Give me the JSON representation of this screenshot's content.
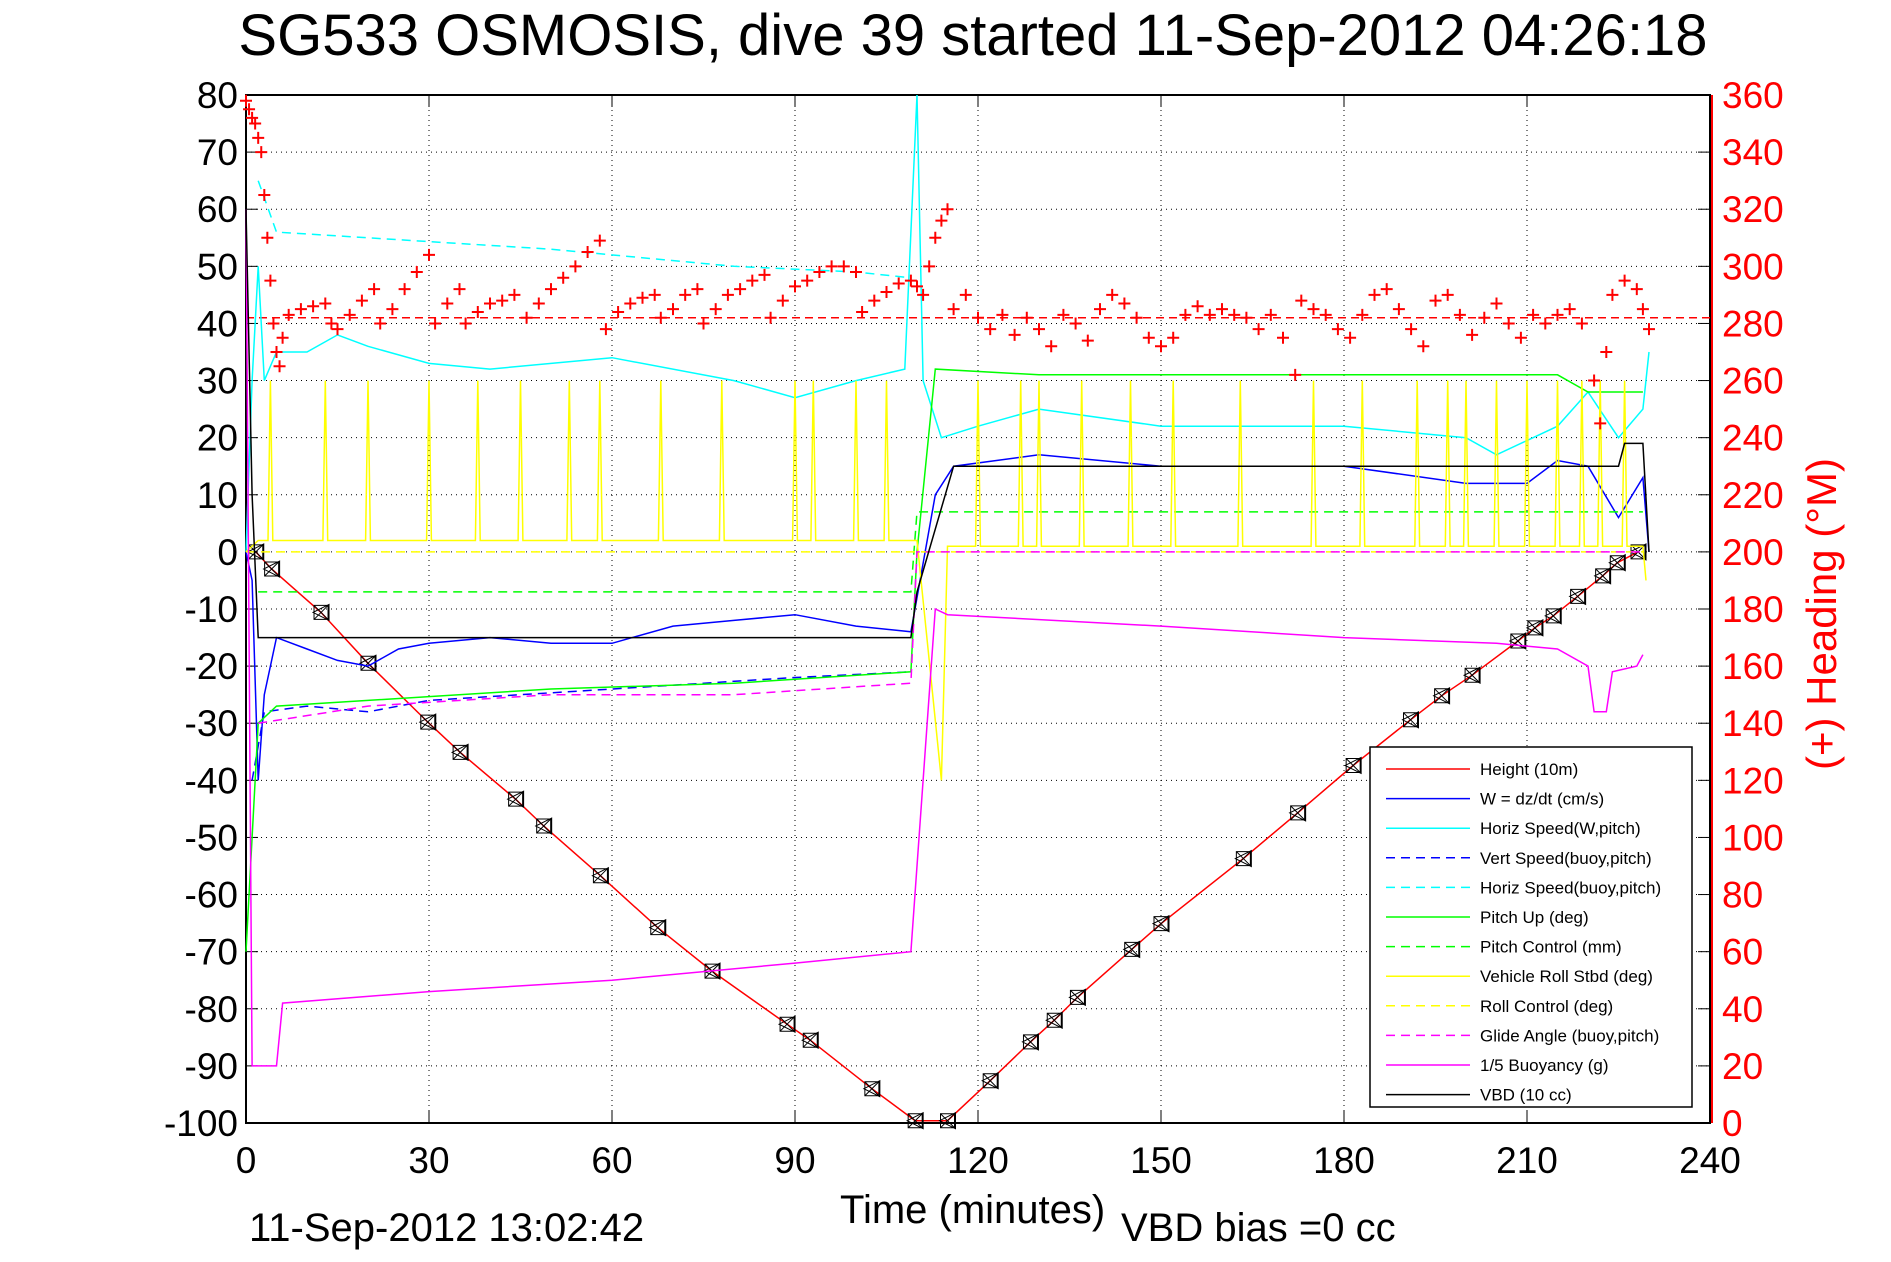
{
  "chart_data": {
    "type": "line",
    "title": "SG533 OSMOSIS, dive 39 started 11-Sep-2012 04:26:18",
    "xlabel": "Time (minutes)",
    "ylabel_right": "(+) Heading (°M)",
    "footer_date": "11-Sep-2012 13:02:42",
    "footer_bias": "VBD bias =0 cc",
    "xlim": [
      0,
      240
    ],
    "ylim": [
      -100,
      80
    ],
    "ylim_right": [
      0,
      360
    ],
    "xticks": [
      0,
      30,
      60,
      90,
      120,
      150,
      180,
      210,
      240
    ],
    "yticks": [
      80,
      70,
      60,
      50,
      40,
      30,
      20,
      10,
      0,
      -10,
      -20,
      -30,
      -40,
      -50,
      -60,
      -70,
      -80,
      -90,
      -100
    ],
    "yticks_right": [
      360,
      340,
      320,
      300,
      280,
      260,
      240,
      220,
      200,
      180,
      160,
      140,
      120,
      100,
      80,
      60,
      40,
      20,
      0
    ],
    "grid": true,
    "legend_position": "bottom-right",
    "colors": {
      "axis": "#000000",
      "right_axis": "#ff0000"
    },
    "series": [
      {
        "name": "Height (10m)",
        "color": "#ff0000",
        "dash": false,
        "markers": true,
        "points": [
          [
            1.6,
            0
          ],
          [
            4.2,
            -3
          ],
          [
            12.3,
            -10.6
          ],
          [
            20,
            -19.5
          ],
          [
            29.8,
            -29.8
          ],
          [
            35.1,
            -35.1
          ],
          [
            44.2,
            -43.3
          ],
          [
            48.8,
            -48
          ],
          [
            58.1,
            -56.7
          ],
          [
            67.5,
            -65.8
          ],
          [
            76.4,
            -73.4
          ],
          [
            88.7,
            -82.7
          ],
          [
            92.5,
            -85.5
          ],
          [
            102.6,
            -94
          ],
          [
            109.7,
            -99.6
          ],
          [
            115,
            -99.6
          ],
          [
            122,
            -92.6
          ],
          [
            128.6,
            -85.8
          ],
          [
            132.5,
            -82
          ],
          [
            136.3,
            -78
          ],
          [
            145.2,
            -69.6
          ],
          [
            150,
            -65.1
          ],
          [
            163.5,
            -53.7
          ],
          [
            172.4,
            -45.7
          ],
          [
            181.5,
            -37.4
          ],
          [
            190.9,
            -29.4
          ],
          [
            196,
            -25.2
          ],
          [
            201,
            -21.6
          ],
          [
            208.5,
            -15.6
          ],
          [
            211.3,
            -13.3
          ],
          [
            214.3,
            -11.2
          ],
          [
            218.3,
            -7.8
          ],
          [
            222.4,
            -4.2
          ],
          [
            224.8,
            -1.9
          ],
          [
            228.2,
            0
          ]
        ]
      },
      {
        "name": "W = dz/dt (cm/s)",
        "color": "#0000ff",
        "dash": false,
        "points": [
          [
            0,
            0
          ],
          [
            1,
            -5
          ],
          [
            2,
            -40
          ],
          [
            3,
            -25
          ],
          [
            5,
            -15
          ],
          [
            10,
            -17
          ],
          [
            15,
            -19
          ],
          [
            20,
            -20
          ],
          [
            25,
            -17
          ],
          [
            30,
            -16
          ],
          [
            40,
            -15
          ],
          [
            50,
            -16
          ],
          [
            60,
            -16
          ],
          [
            70,
            -13
          ],
          [
            80,
            -12
          ],
          [
            90,
            -11
          ],
          [
            100,
            -13
          ],
          [
            109,
            -14
          ],
          [
            110,
            -8
          ],
          [
            113,
            10
          ],
          [
            116,
            15
          ],
          [
            130,
            17
          ],
          [
            150,
            15
          ],
          [
            180,
            15
          ],
          [
            200,
            12
          ],
          [
            210,
            12
          ],
          [
            215,
            16
          ],
          [
            220,
            15
          ],
          [
            225,
            6
          ],
          [
            229,
            13
          ],
          [
            230,
            0
          ]
        ]
      },
      {
        "name": "Horiz Speed(W,pitch)",
        "color": "#00ffff",
        "dash": false,
        "points": [
          [
            0,
            0
          ],
          [
            1,
            30
          ],
          [
            2,
            50
          ],
          [
            3,
            30
          ],
          [
            5,
            35
          ],
          [
            10,
            35
          ],
          [
            15,
            38
          ],
          [
            20,
            36
          ],
          [
            30,
            33
          ],
          [
            40,
            32
          ],
          [
            60,
            34
          ],
          [
            80,
            30
          ],
          [
            90,
            27
          ],
          [
            100,
            30
          ],
          [
            108,
            32
          ],
          [
            110,
            80
          ],
          [
            111,
            30
          ],
          [
            114,
            20
          ],
          [
            120,
            22
          ],
          [
            130,
            25
          ],
          [
            150,
            22
          ],
          [
            180,
            22
          ],
          [
            200,
            20
          ],
          [
            205,
            17
          ],
          [
            215,
            22
          ],
          [
            220,
            28
          ],
          [
            225,
            20
          ],
          [
            229,
            25
          ],
          [
            230,
            35
          ]
        ]
      },
      {
        "name": "Vert Speed(buoy,pitch)",
        "color": "#0000ff",
        "dash": true,
        "points": [
          [
            1,
            -40
          ],
          [
            3,
            -28
          ],
          [
            10,
            -27
          ],
          [
            20,
            -28
          ],
          [
            30,
            -26
          ],
          [
            60,
            -24
          ],
          [
            90,
            -22
          ],
          [
            109,
            -21
          ]
        ]
      },
      {
        "name": "Horiz Speed(buoy,pitch)",
        "color": "#00ffff",
        "dash": true,
        "points": [
          [
            2,
            65
          ],
          [
            5,
            56
          ],
          [
            20,
            55
          ],
          [
            50,
            53
          ],
          [
            80,
            50
          ],
          [
            100,
            49
          ],
          [
            109,
            48
          ]
        ]
      },
      {
        "name": "Pitch Up (deg)",
        "color": "#00ff00",
        "dash": false,
        "points": [
          [
            0,
            -70
          ],
          [
            2,
            -30
          ],
          [
            5,
            -27
          ],
          [
            20,
            -26
          ],
          [
            50,
            -24
          ],
          [
            80,
            -23
          ],
          [
            109,
            -21
          ],
          [
            110,
            0
          ],
          [
            113,
            32
          ],
          [
            130,
            31
          ],
          [
            180,
            31
          ],
          [
            215,
            31
          ],
          [
            220,
            28
          ],
          [
            229,
            28
          ]
        ]
      },
      {
        "name": "Pitch Control (mm)",
        "color": "#00ff00",
        "dash": true,
        "points": [
          [
            2,
            -7
          ],
          [
            109,
            -7
          ],
          [
            110,
            7
          ],
          [
            229,
            7
          ]
        ]
      },
      {
        "name": "Vehicle Roll Stbd (deg)",
        "color": "#ffff00",
        "dash": false,
        "baseline_descent": 2,
        "baseline_ascent": 1,
        "spike_value": 30,
        "spike_times": [
          4,
          13,
          20,
          30,
          38,
          45,
          53,
          58,
          68,
          78,
          90,
          93,
          100,
          105,
          120,
          127,
          130,
          137,
          145,
          152,
          163,
          175,
          183,
          192,
          197,
          200,
          205,
          210,
          215,
          219,
          222,
          226
        ]
      },
      {
        "name": "Roll Control (deg)",
        "color": "#ffff00",
        "dash": true,
        "points": [
          [
            0,
            0
          ],
          [
            229,
            0
          ]
        ]
      },
      {
        "name": "Glide Angle (buoy,pitch)",
        "color": "#ff00ff",
        "dash": true,
        "points": [
          [
            2,
            -30
          ],
          [
            20,
            -27
          ],
          [
            50,
            -25
          ],
          [
            80,
            -25
          ],
          [
            109,
            -23
          ],
          [
            110,
            0
          ],
          [
            229,
            0
          ]
        ]
      },
      {
        "name": "1/5 Buoyancy (g)",
        "color": "#ff00ff",
        "dash": false,
        "points": [
          [
            0,
            60
          ],
          [
            1,
            -90
          ],
          [
            5,
            -90
          ],
          [
            6,
            -79
          ],
          [
            30,
            -77
          ],
          [
            60,
            -75
          ],
          [
            90,
            -72
          ],
          [
            109,
            -70
          ],
          [
            113,
            -10
          ],
          [
            115,
            -11
          ],
          [
            150,
            -13
          ],
          [
            180,
            -15
          ],
          [
            205,
            -16
          ],
          [
            215,
            -17
          ],
          [
            220,
            -20
          ],
          [
            221,
            -28
          ],
          [
            223,
            -28
          ],
          [
            224,
            -21
          ],
          [
            228,
            -20
          ],
          [
            229,
            -18
          ]
        ]
      },
      {
        "name": "VBD (10 cc)",
        "color": "#000000",
        "dash": false,
        "points": [
          [
            0,
            60
          ],
          [
            1,
            10
          ],
          [
            2,
            -15
          ],
          [
            109,
            -15
          ],
          [
            110,
            -7
          ],
          [
            116,
            15
          ],
          [
            225,
            15
          ],
          [
            226,
            19
          ],
          [
            229,
            19
          ],
          [
            230,
            0
          ]
        ]
      }
    ],
    "heading": {
      "name": "Heading",
      "color": "#ff0000",
      "marker": "+",
      "reference": 282,
      "points": [
        [
          0,
          358
        ],
        [
          0.5,
          355
        ],
        [
          1,
          352
        ],
        [
          1.5,
          350
        ],
        [
          2,
          345
        ],
        [
          2.5,
          340
        ],
        [
          3,
          325
        ],
        [
          3.5,
          310
        ],
        [
          4,
          295
        ],
        [
          4.5,
          280
        ],
        [
          5,
          270
        ],
        [
          5.5,
          265
        ],
        [
          6,
          275
        ],
        [
          7,
          283
        ],
        [
          9,
          285
        ],
        [
          11,
          286
        ],
        [
          13,
          287
        ],
        [
          14,
          280
        ],
        [
          15,
          278
        ],
        [
          17,
          283
        ],
        [
          19,
          288
        ],
        [
          21,
          292
        ],
        [
          22,
          280
        ],
        [
          24,
          285
        ],
        [
          26,
          292
        ],
        [
          28,
          298
        ],
        [
          30,
          304
        ],
        [
          31,
          280
        ],
        [
          33,
          287
        ],
        [
          35,
          292
        ],
        [
          36,
          280
        ],
        [
          38,
          284
        ],
        [
          40,
          287
        ],
        [
          42,
          288
        ],
        [
          44,
          290
        ],
        [
          46,
          282
        ],
        [
          48,
          287
        ],
        [
          50,
          292
        ],
        [
          52,
          296
        ],
        [
          54,
          300
        ],
        [
          56,
          305
        ],
        [
          58,
          309
        ],
        [
          59,
          278
        ],
        [
          61,
          284
        ],
        [
          63,
          287
        ],
        [
          65,
          289
        ],
        [
          67,
          290
        ],
        [
          68,
          282
        ],
        [
          70,
          285
        ],
        [
          72,
          290
        ],
        [
          74,
          292
        ],
        [
          75,
          280
        ],
        [
          77,
          285
        ],
        [
          79,
          290
        ],
        [
          81,
          292
        ],
        [
          83,
          295
        ],
        [
          85,
          297
        ],
        [
          86,
          282
        ],
        [
          88,
          288
        ],
        [
          90,
          293
        ],
        [
          92,
          295
        ],
        [
          94,
          298
        ],
        [
          96,
          300
        ],
        [
          98,
          300
        ],
        [
          100,
          298
        ],
        [
          101,
          284
        ],
        [
          103,
          288
        ],
        [
          105,
          291
        ],
        [
          107,
          294
        ],
        [
          109,
          295
        ],
        [
          110,
          293
        ],
        [
          111,
          290
        ],
        [
          112,
          300
        ],
        [
          113,
          310
        ],
        [
          114,
          316
        ],
        [
          115,
          320
        ],
        [
          116,
          285
        ],
        [
          118,
          290
        ],
        [
          120,
          282
        ],
        [
          122,
          278
        ],
        [
          124,
          283
        ],
        [
          126,
          276
        ],
        [
          128,
          282
        ],
        [
          130,
          278
        ],
        [
          132,
          272
        ],
        [
          134,
          283
        ],
        [
          136,
          280
        ],
        [
          138,
          274
        ],
        [
          140,
          285
        ],
        [
          142,
          290
        ],
        [
          144,
          287
        ],
        [
          146,
          282
        ],
        [
          148,
          275
        ],
        [
          150,
          272
        ],
        [
          152,
          275
        ],
        [
          154,
          283
        ],
        [
          156,
          286
        ],
        [
          158,
          283
        ],
        [
          160,
          285
        ],
        [
          162,
          283
        ],
        [
          164,
          282
        ],
        [
          166,
          278
        ],
        [
          168,
          283
        ],
        [
          170,
          275
        ],
        [
          172,
          262
        ],
        [
          173,
          288
        ],
        [
          175,
          285
        ],
        [
          177,
          283
        ],
        [
          179,
          278
        ],
        [
          181,
          275
        ],
        [
          183,
          283
        ],
        [
          185,
          290
        ],
        [
          187,
          292
        ],
        [
          189,
          285
        ],
        [
          191,
          278
        ],
        [
          193,
          272
        ],
        [
          195,
          288
        ],
        [
          197,
          290
        ],
        [
          199,
          283
        ],
        [
          201,
          276
        ],
        [
          203,
          282
        ],
        [
          205,
          287
        ],
        [
          207,
          280
        ],
        [
          209,
          275
        ],
        [
          211,
          283
        ],
        [
          213,
          280
        ],
        [
          215,
          283
        ],
        [
          217,
          285
        ],
        [
          219,
          280
        ],
        [
          221,
          260
        ],
        [
          222,
          245
        ],
        [
          223,
          270
        ],
        [
          224,
          290
        ],
        [
          226,
          295
        ],
        [
          228,
          292
        ],
        [
          229,
          285
        ],
        [
          230,
          278
        ]
      ]
    }
  }
}
